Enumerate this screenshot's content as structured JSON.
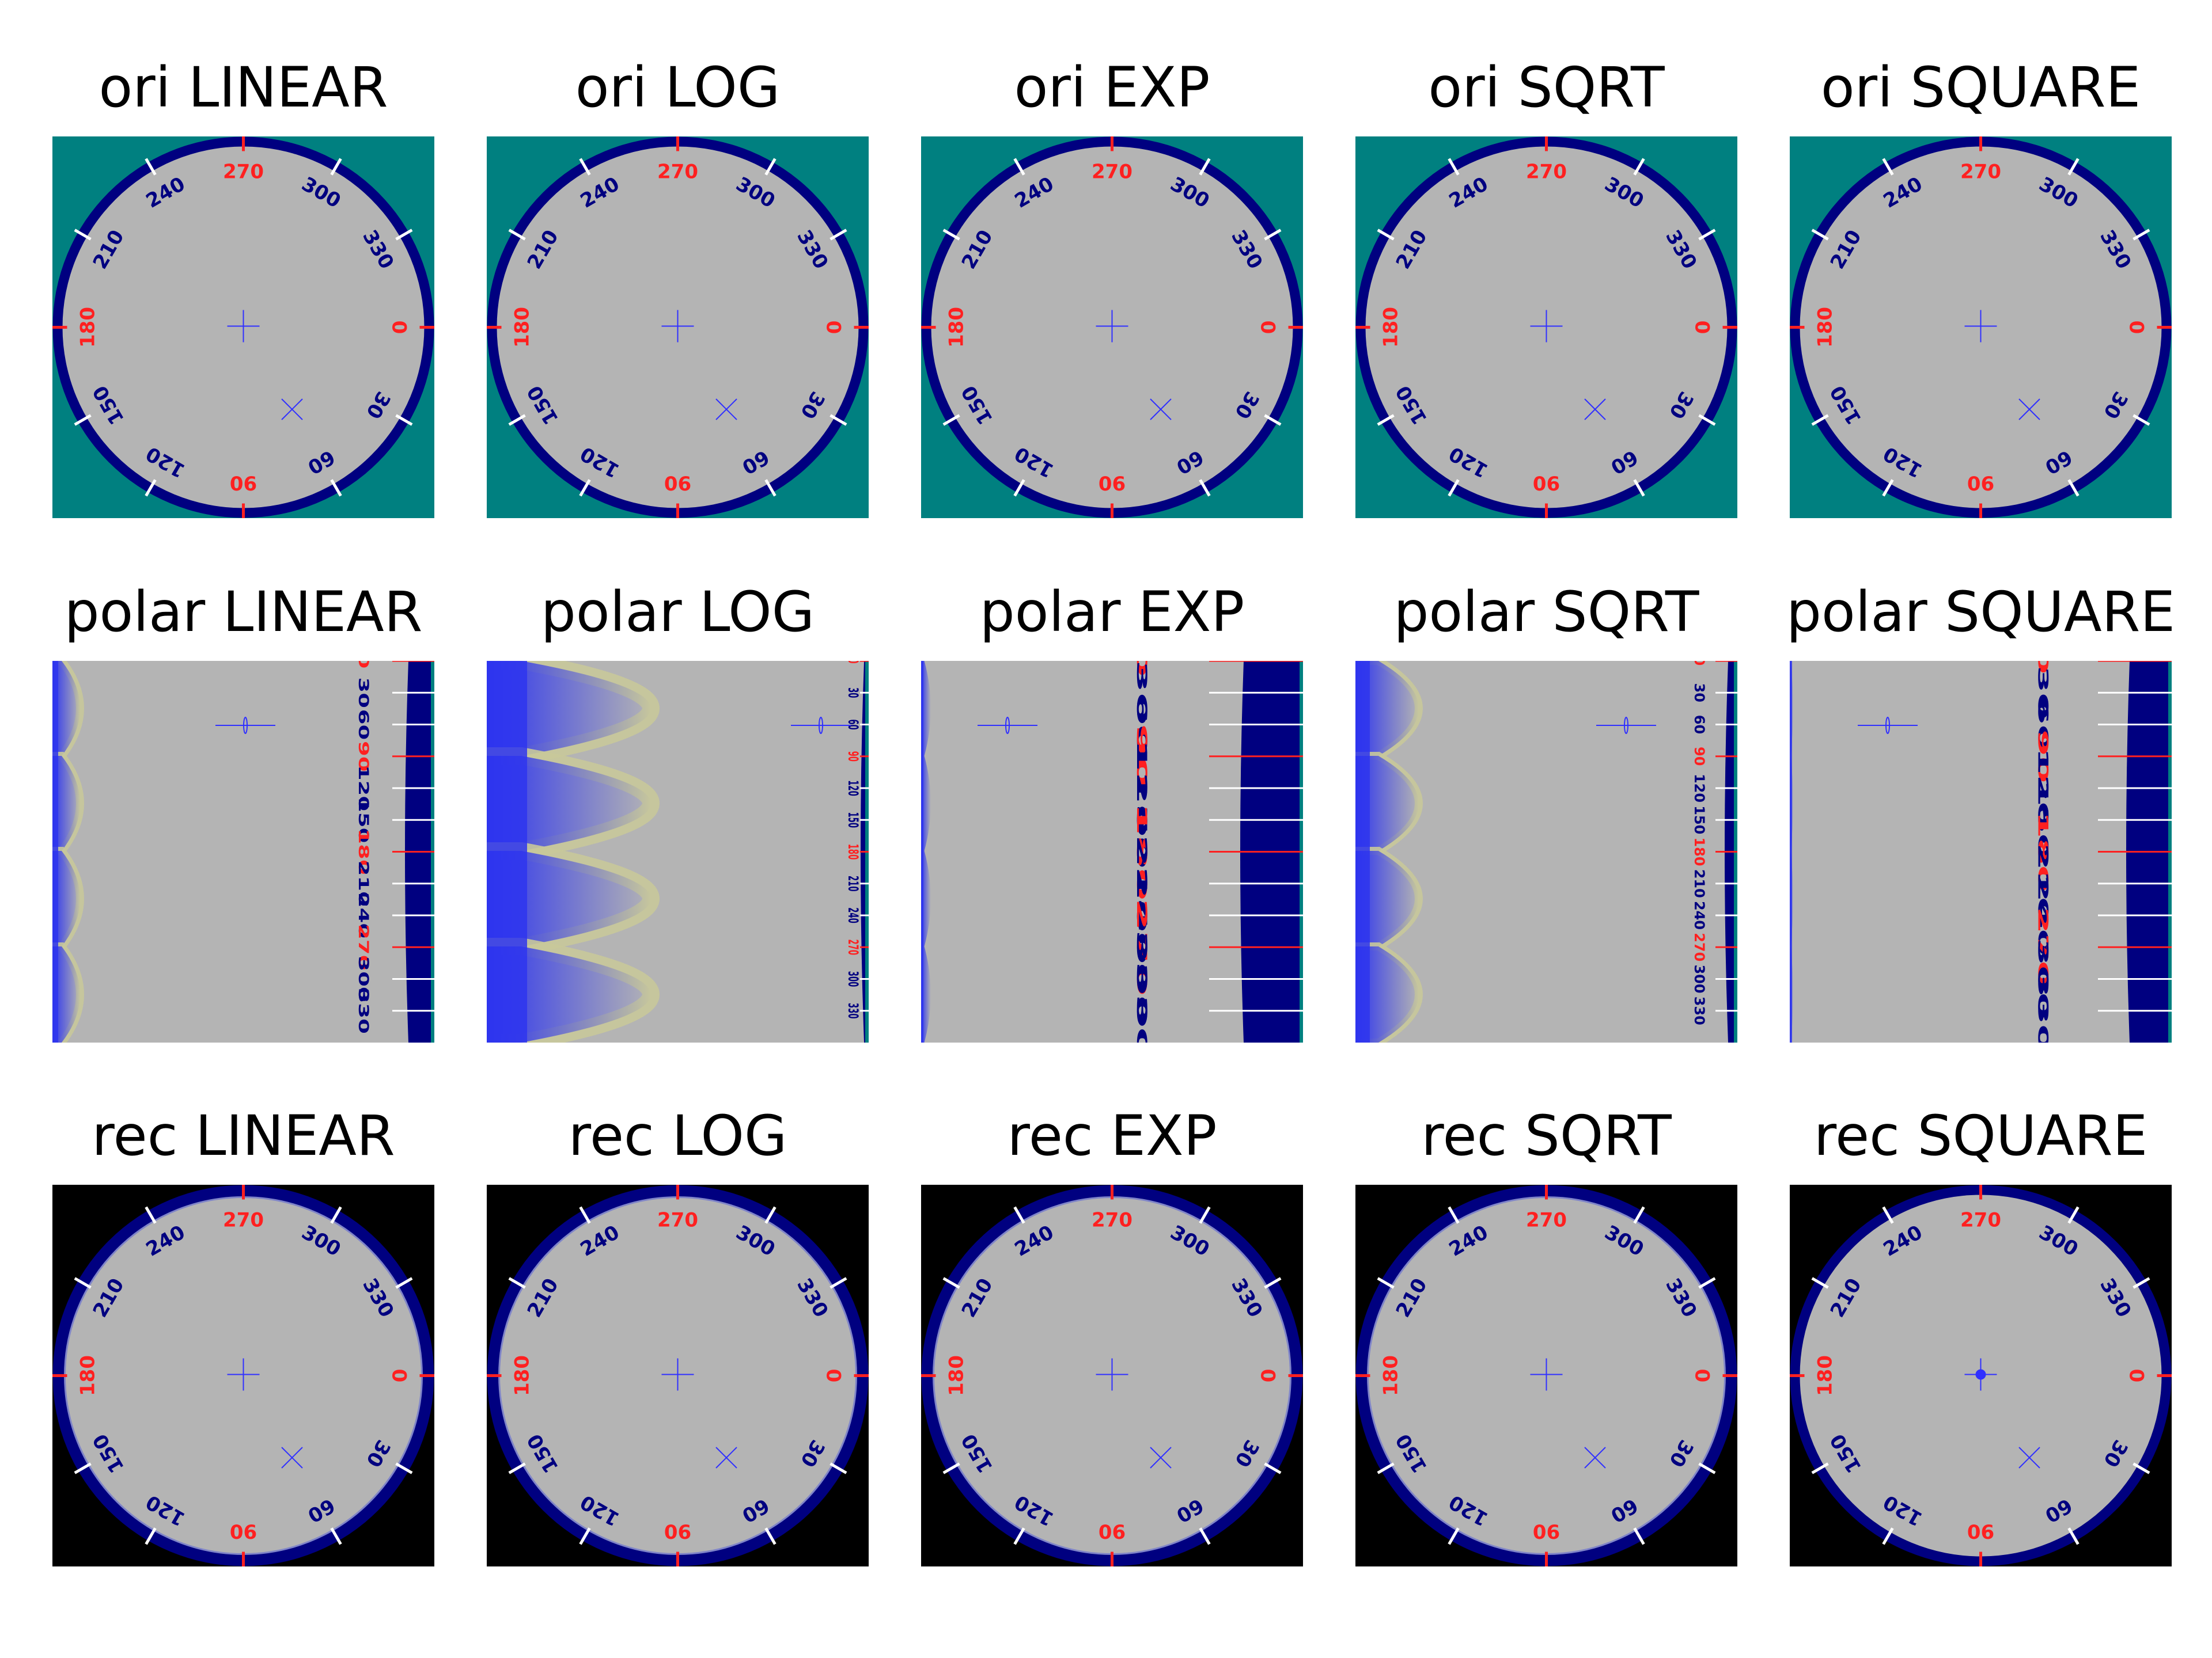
{
  "colors": {
    "background_ori": "#008080",
    "background_rec": "#000000",
    "dial_face": "#b4b4b4",
    "dial_ring": "#000080",
    "label_blue": "#000080",
    "label_red": "#ff2020",
    "tick_white": "#ffffff",
    "marker_blue": "#3030ff",
    "polar_edge_blue": "#2e35ee",
    "polar_fringe_yellow": "#c8c89a"
  },
  "dial": {
    "labels": [
      "0",
      "30",
      "60",
      "90",
      "120",
      "150",
      "180",
      "210",
      "240",
      "270",
      "300",
      "330"
    ],
    "red_labels": [
      "0",
      "90",
      "180",
      "270"
    ]
  },
  "rows": [
    {
      "key": "ori",
      "titles": [
        "ori LINEAR",
        "ori LOG",
        "ori EXP",
        "ori SQRT",
        "ori SQUARE"
      ]
    },
    {
      "key": "polar",
      "titles": [
        "polar LINEAR",
        "polar LOG",
        "polar EXP",
        "polar SQRT",
        "polar SQUARE"
      ]
    },
    {
      "key": "rec",
      "titles": [
        "rec LINEAR",
        "rec LOG",
        "rec EXP",
        "rec SQRT",
        "rec SQUARE"
      ]
    }
  ],
  "scalings": [
    "LINEAR",
    "LOG",
    "EXP",
    "SQRT",
    "SQUARE"
  ]
}
